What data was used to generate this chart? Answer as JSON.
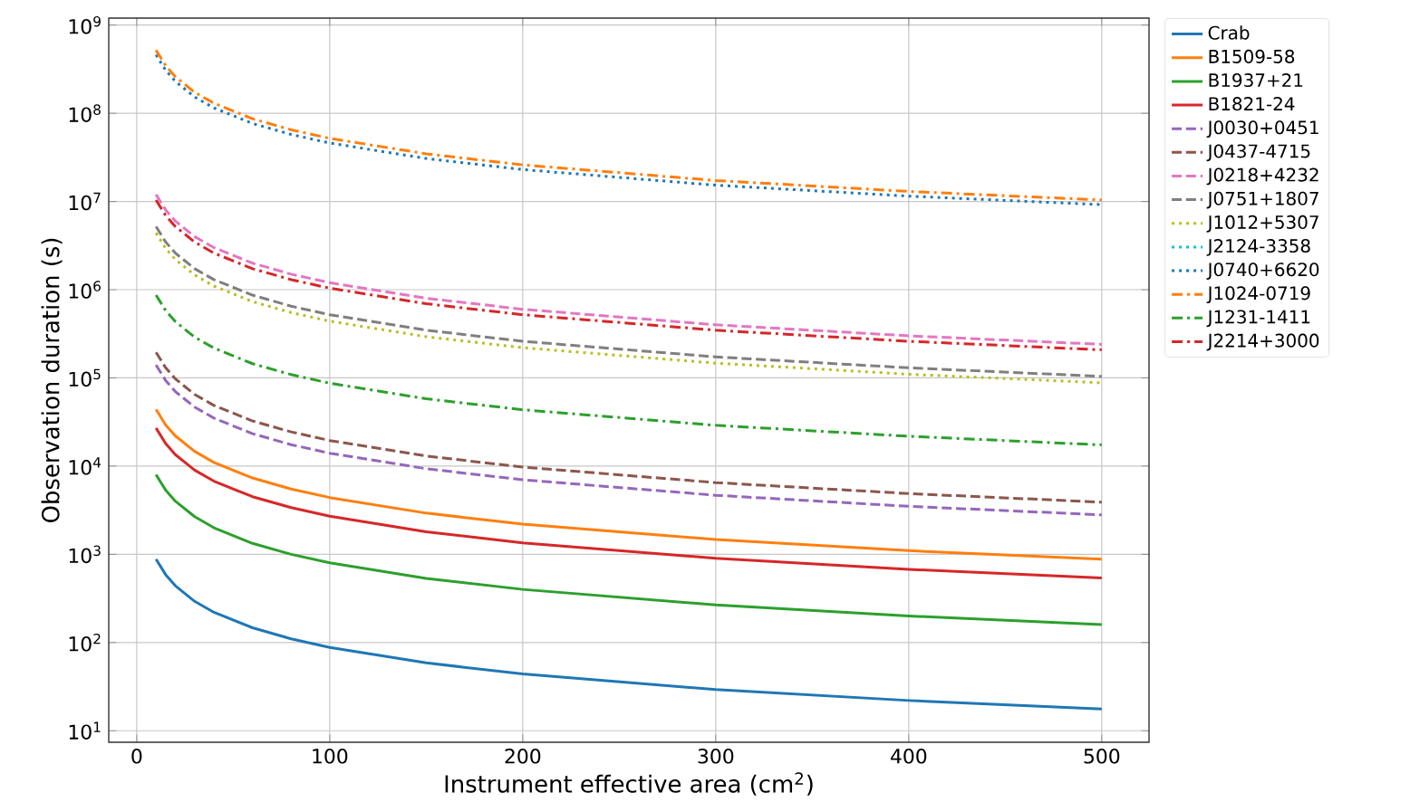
{
  "chart_data": {
    "type": "line",
    "xlabel": "Instrument effective area (cm$^{2}$)",
    "ylabel": "Observation duration (s)",
    "x": [
      10,
      15,
      20,
      30,
      40,
      60,
      80,
      100,
      150,
      200,
      300,
      400,
      500
    ],
    "xlim": [
      -14.5,
      524.5
    ],
    "xticks": [
      0,
      100,
      200,
      300,
      400,
      500
    ],
    "ylim": [
      7.4,
      1200000000
    ],
    "log": "y",
    "yticks": [
      {
        "value": 10,
        "label": "10$^{1}$"
      },
      {
        "value": 100,
        "label": "10$^{2}$"
      },
      {
        "value": 1000,
        "label": "10$^{3}$"
      },
      {
        "value": 10000,
        "label": "10$^{4}$"
      },
      {
        "value": 100000,
        "label": "10$^{5}$"
      },
      {
        "value": 1000000,
        "label": "10$^{6}$"
      },
      {
        "value": 10000000,
        "label": "10$^{7}$"
      },
      {
        "value": 100000000,
        "label": "10$^{8}$"
      },
      {
        "value": 1000000000,
        "label": "10$^{9}$"
      }
    ],
    "grid": true,
    "legend": "right",
    "marker": "none",
    "series": [
      {
        "name": "Crab",
        "color": "#1f77b4",
        "line_style": "solid",
        "values": [
          880,
          587,
          440,
          293,
          220,
          147,
          110,
          88,
          58.7,
          44,
          29.3,
          22,
          17.6
        ]
      },
      {
        "name": "B1509-58",
        "color": "#ff7f0e",
        "line_style": "solid",
        "values": [
          44000,
          29300,
          22000,
          14700,
          11000,
          7330,
          5500,
          4400,
          2930,
          2200,
          1470,
          1100,
          880
        ]
      },
      {
        "name": "B1937+21",
        "color": "#2ca02c",
        "line_style": "solid",
        "values": [
          8000,
          5330,
          4000,
          2670,
          2000,
          1330,
          1000,
          800,
          533,
          400,
          267,
          200,
          160
        ]
      },
      {
        "name": "B1821-24",
        "color": "#d62728",
        "line_style": "solid",
        "values": [
          27000,
          18000,
          13500,
          9000,
          6750,
          4500,
          3380,
          2700,
          1800,
          1350,
          900,
          675,
          540
        ]
      },
      {
        "name": "J0030+0451",
        "color": "#9467bd",
        "line_style": "dashed",
        "values": [
          140000,
          93300,
          70000,
          46700,
          35000,
          23300,
          17500,
          14000,
          9330,
          7000,
          4670,
          3500,
          2800
        ]
      },
      {
        "name": "J0437-4715",
        "color": "#8c564b",
        "line_style": "dashed",
        "values": [
          195000,
          130000,
          97500,
          65000,
          48800,
          32500,
          24400,
          19500,
          13000,
          9750,
          6500,
          4880,
          3900
        ]
      },
      {
        "name": "J0218+4232",
        "color": "#e377c2",
        "line_style": "dashed",
        "values": [
          12000000,
          8000000,
          6000000,
          4000000,
          3000000,
          2000000,
          1500000,
          1200000,
          800000,
          600000,
          400000,
          300000,
          240000
        ]
      },
      {
        "name": "J0751+1807",
        "color": "#7f7f7f",
        "line_style": "dashed",
        "values": [
          5200000,
          3470000,
          2600000,
          1730000,
          1300000,
          867000,
          650000,
          520000,
          347000,
          260000,
          173000,
          130000,
          104000
        ]
      },
      {
        "name": "J1012+5307",
        "color": "#bcbd22",
        "line_style": "dotted",
        "values": [
          4400000,
          2930000,
          2200000,
          1470000,
          1100000,
          733000,
          550000,
          440000,
          293000,
          220000,
          147000,
          110000,
          88000
        ]
      },
      {
        "name": "J2124-3358",
        "color": "#17becf",
        "line_style": "dotted",
        "values": [
          null,
          null,
          null,
          null,
          null,
          null,
          null,
          null,
          null,
          null,
          null,
          null,
          null
        ]
      },
      {
        "name": "J0740+6620",
        "color": "#1f77b4",
        "line_style": "dotted",
        "values": [
          460000000,
          307000000,
          230000000,
          153000000,
          115000000,
          76700000,
          57500000,
          46000000,
          30700000,
          23000000,
          15300000,
          11500000,
          9200000
        ]
      },
      {
        "name": "J1024-0719",
        "color": "#ff7f0e",
        "line_style": "dashdot",
        "values": [
          520000000,
          347000000,
          260000000,
          173000000,
          130000000,
          86700000,
          65000000,
          52000000,
          34700000,
          26000000,
          17300000,
          13000000,
          10400000
        ]
      },
      {
        "name": "J1231-1411",
        "color": "#2ca02c",
        "line_style": "dashdot",
        "values": [
          870000,
          580000,
          435000,
          290000,
          218000,
          145000,
          109000,
          87000,
          58000,
          43500,
          29000,
          21800,
          17400
        ]
      },
      {
        "name": "J2214+3000",
        "color": "#d62728",
        "line_style": "dashdot",
        "values": [
          10400000,
          6930000,
          5200000,
          3470000,
          2600000,
          1730000,
          1300000,
          1040000,
          693000,
          520000,
          347000,
          260000,
          208000
        ]
      }
    ]
  }
}
